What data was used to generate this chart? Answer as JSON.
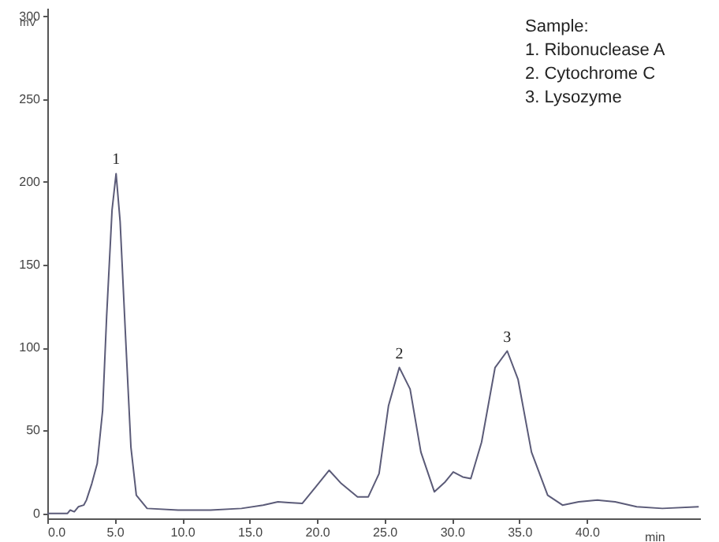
{
  "chart_data": {
    "type": "line",
    "xlabel": "min",
    "ylabel": "mV",
    "x": [
      0,
      1.5,
      1.7,
      2.0,
      2.3,
      2.7,
      2.9,
      3.3,
      3.7,
      4.1,
      4.4,
      4.8,
      5.1,
      5.4,
      5.8,
      6.2,
      6.6,
      7.4,
      9.7,
      12.1,
      14.4,
      16,
      17.1,
      17.9,
      18.9,
      19.9,
      20.9,
      21.8,
      23,
      23.8,
      24.6,
      25.3,
      26.1,
      26.9,
      27.7,
      28.7,
      29.5,
      30.1,
      30.8,
      31.4,
      32.2,
      33.2,
      34.1,
      34.9,
      35.9,
      37.1,
      38.2,
      39.4,
      40.8,
      42.1,
      43.7,
      45.6,
      48.3
    ],
    "series": [
      {
        "color": "#5b5b78",
        "values": [
          0,
          0,
          2,
          1,
          4,
          5,
          8,
          18,
          30,
          62,
          119,
          183,
          205,
          176,
          107,
          40,
          11,
          3,
          2,
          2,
          3,
          5,
          7,
          6.5,
          6,
          16,
          26,
          18,
          10,
          10,
          24,
          65,
          88,
          75,
          37,
          13,
          19,
          25,
          22,
          21,
          43,
          88,
          98,
          81,
          37,
          11,
          5,
          7,
          8,
          7,
          4,
          3,
          4
        ]
      }
    ],
    "xlim": [
      0,
      48.4
    ],
    "ylim": [
      -3,
      305
    ],
    "xticks": [
      {
        "value": 0,
        "label": "0.0"
      },
      {
        "value": 5,
        "label": "5.0"
      },
      {
        "value": 10,
        "label": "10.0"
      },
      {
        "value": 15,
        "label": "15.0"
      },
      {
        "value": 20,
        "label": "20.0"
      },
      {
        "value": 25,
        "label": "25.0"
      },
      {
        "value": 30,
        "label": "30.0"
      },
      {
        "value": 35,
        "label": "35.0"
      },
      {
        "value": 40,
        "label": "40.0"
      }
    ],
    "yticks": [
      0,
      50,
      100,
      150,
      200,
      250,
      300
    ],
    "grid": false,
    "marker": "none",
    "line_style": "solid",
    "annotations": [
      "Sample:",
      "1. Ribonuclease A",
      "2. Cytochrome C",
      "3. Lysozyme",
      {
        "text": "1",
        "x": 5.1,
        "y": 205
      },
      {
        "text": "2",
        "x": 26.1,
        "y": 88
      },
      {
        "text": "3",
        "x": 34.1,
        "y": 98
      }
    ]
  }
}
